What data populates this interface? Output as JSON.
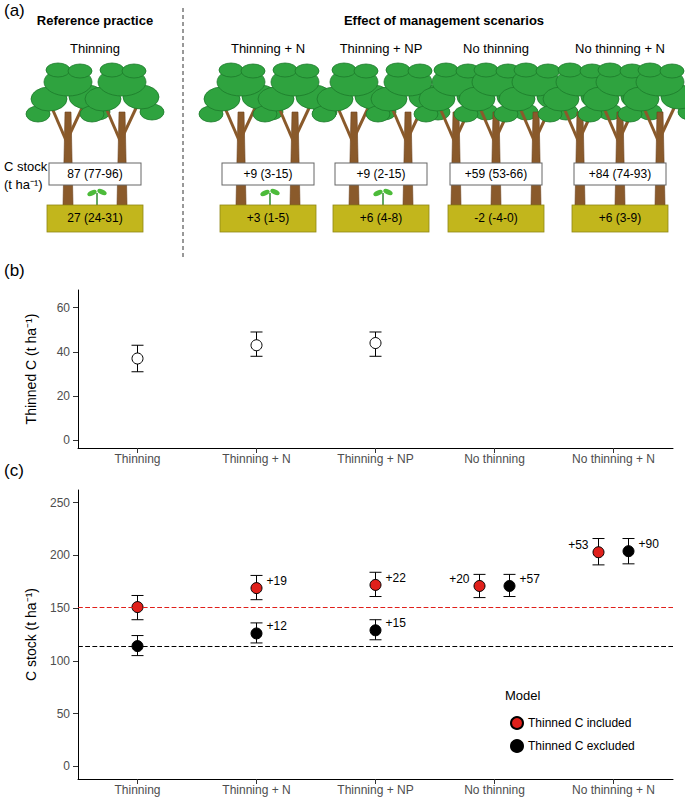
{
  "panel_a": {
    "label": "(a)",
    "reference_header": "Reference practice",
    "scenarios_header": "Effect of management scenarios",
    "row_label": [
      "C stock",
      "(t ha⁻¹)"
    ],
    "columns": [
      {
        "name": "Thinning",
        "tree_c": "87 (77-96)",
        "soil_c": "27 (24-31)"
      },
      {
        "name": "Thinning + N",
        "tree_c": "+9 (3-15)",
        "soil_c": "+3 (1-5)"
      },
      {
        "name": "Thinning + NP",
        "tree_c": "+9 (2-15)",
        "soil_c": "+6 (4-8)"
      },
      {
        "name": "No thinning",
        "tree_c": "+59 (53-66)",
        "soil_c": "-2 (-4-0)"
      },
      {
        "name": "No thinning + N",
        "tree_c": "+84 (74-93)",
        "soil_c": "+6 (3-9)"
      }
    ]
  },
  "chart_data": [
    {
      "type": "scatter",
      "title": "(b)",
      "y_label": "Thinned C (t ha⁻¹)",
      "categories": [
        "Thinning",
        "Thinning + N",
        "Thinning + NP",
        "No thinning",
        "No thinning + N"
      ],
      "values": [
        37,
        43,
        44,
        null,
        null
      ],
      "lower": [
        31,
        38,
        38,
        null,
        null
      ],
      "upper": [
        43,
        49,
        49,
        null,
        null
      ],
      "color": "#000000",
      "marker": "circle-open",
      "ylim": [
        -3.5,
        68
      ],
      "yticks": [
        0,
        20,
        40,
        60
      ],
      "grid": false
    },
    {
      "type": "scatter",
      "title": "(c)",
      "y_label": "C stock (t ha⁻¹)",
      "categories": [
        "Thinning",
        "Thinning + N",
        "Thinning + NP",
        "No thinning",
        "No thinning + N"
      ],
      "legend_title": "Model",
      "legend": "lower right",
      "series": [
        {
          "name": "Thinned C included",
          "color": "#e0201b",
          "marker": "circle",
          "values": [
            151,
            169,
            172,
            171,
            203
          ],
          "lower": [
            139,
            158,
            161,
            160,
            191
          ],
          "upper": [
            162,
            181,
            184,
            182,
            216
          ],
          "reference_line": 151,
          "annotations": [
            null,
            "+19",
            "+22",
            "+20",
            "+53"
          ]
        },
        {
          "name": "Thinned C excluded",
          "color": "#000000",
          "marker": "circle",
          "values": [
            114,
            126,
            129,
            171,
            204
          ],
          "lower": [
            105,
            117,
            120,
            161,
            192
          ],
          "upper": [
            124,
            136,
            139,
            182,
            216
          ],
          "reference_line": 114,
          "annotations": [
            null,
            "+12",
            "+15",
            "+57",
            "+90"
          ]
        }
      ],
      "ylim": [
        -12,
        262
      ],
      "yticks": [
        0,
        50,
        100,
        150,
        200,
        250
      ],
      "grid": false
    }
  ]
}
